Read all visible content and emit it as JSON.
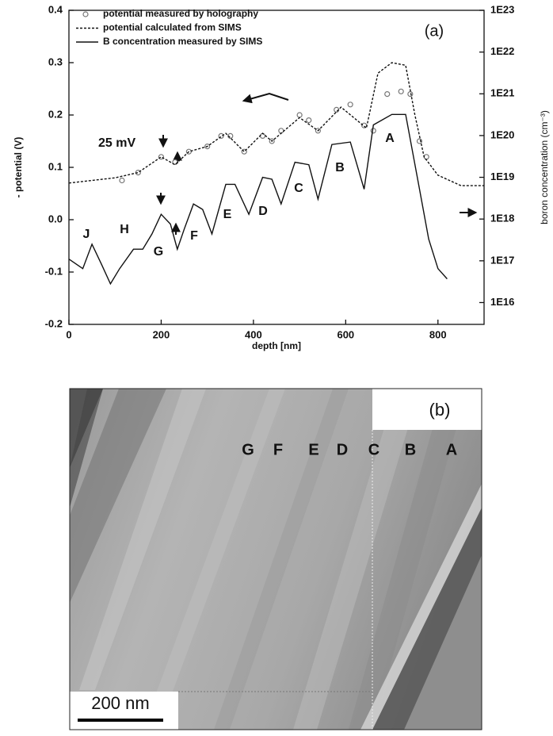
{
  "chart_data": {
    "type": "line",
    "xlabel": "depth [nm]",
    "ylabel": "- potential (V)",
    "y2label": "boron concentration (cm⁻³)",
    "xlim": [
      0,
      900
    ],
    "xticks": [
      0,
      200,
      400,
      600,
      800
    ],
    "ylim": [
      -0.2,
      0.4
    ],
    "yticks": [
      -0.2,
      -0.1,
      {
        "value": 0,
        "label": "0.0"
      },
      0.1,
      0.2,
      0.3,
      0.4
    ],
    "y2lim": [
      3000000000000000.0,
      1e+23
    ],
    "y2log": true,
    "y2ticks": [
      {
        "value": 1e+16,
        "label": "1E16"
      },
      {
        "value": 1e+17,
        "label": "1E17"
      },
      {
        "value": 1e+18,
        "label": "1E18"
      },
      {
        "value": 1e+19,
        "label": "1E19"
      },
      {
        "value": 1e+20,
        "label": "1E20"
      },
      {
        "value": 1e+21,
        "label": "1E21"
      },
      {
        "value": 1e+22,
        "label": "1E22"
      },
      {
        "value": 1e+23,
        "label": "1E23"
      }
    ],
    "series": [
      {
        "name": "potential measured by holography",
        "style": "markers",
        "color": "#777777",
        "x": [
          115,
          150,
          200,
          230,
          260,
          300,
          330,
          350,
          380,
          420,
          440,
          460,
          500,
          520,
          540,
          580,
          610,
          640,
          660,
          690,
          720,
          740,
          760,
          775
        ],
        "values": [
          0.075,
          0.09,
          0.12,
          0.11,
          0.13,
          0.14,
          0.16,
          0.16,
          0.13,
          0.16,
          0.15,
          0.17,
          0.2,
          0.19,
          0.17,
          0.21,
          0.22,
          0.18,
          0.17,
          0.24,
          0.245,
          0.24,
          0.15,
          0.12
        ]
      },
      {
        "name": "potential calculated from SIMS",
        "style": "dashed",
        "color": "#111111",
        "x": [
          0,
          50,
          100,
          150,
          200,
          230,
          260,
          300,
          340,
          380,
          420,
          440,
          500,
          540,
          590,
          645,
          670,
          700,
          730,
          750,
          770,
          800,
          850,
          900
        ],
        "values": [
          0.07,
          0.075,
          0.08,
          0.09,
          0.12,
          0.105,
          0.13,
          0.14,
          0.165,
          0.13,
          0.165,
          0.15,
          0.195,
          0.17,
          0.215,
          0.175,
          0.28,
          0.3,
          0.295,
          0.2,
          0.12,
          0.085,
          0.065,
          0.065
        ]
      },
      {
        "name": "B concentration measured by SIMS",
        "style": "solid",
        "color": "#111111",
        "axis": "y2",
        "x": [
          0,
          30,
          50,
          70,
          90,
          110,
          140,
          160,
          180,
          200,
          220,
          235,
          250,
          270,
          290,
          310,
          340,
          360,
          390,
          420,
          440,
          460,
          490,
          520,
          540,
          570,
          610,
          640,
          660,
          700,
          730,
          760,
          780,
          800,
          820
        ],
        "values": [
          1.1e+17,
          6.5e+16,
          2.5e+17,
          8.5e+16,
          2.8e+16,
          6.5e+16,
          1.9e+17,
          1.9e+17,
          4.4e+17,
          1.3e+18,
          7.6e+17,
          1.9e+17,
          5.8e+17,
          2.3e+18,
          1.7e+18,
          4.4e+17,
          6.8e+18,
          6.8e+18,
          1.3e+18,
          1e+19,
          9e+18,
          2.3e+18,
          2.3e+19,
          2e+19,
          3e+18,
          6.1e+19,
          7e+19,
          5.2e+18,
          1.8e+20,
          3.2e+20,
          3.2e+20,
          5.2e+18,
          3.3e+17,
          6.5e+16,
          3.7e+16
        ]
      }
    ],
    "annotations": [
      "25 mV",
      "J",
      "H",
      "G",
      "F",
      "E",
      "D",
      "C",
      "B",
      "A"
    ],
    "panel_label": "(a)"
  },
  "image_panel": {
    "label": "(b)",
    "letters": [
      "G",
      "F",
      "E",
      "D",
      "C",
      "B",
      "A"
    ],
    "scale_bar": "200 nm"
  }
}
